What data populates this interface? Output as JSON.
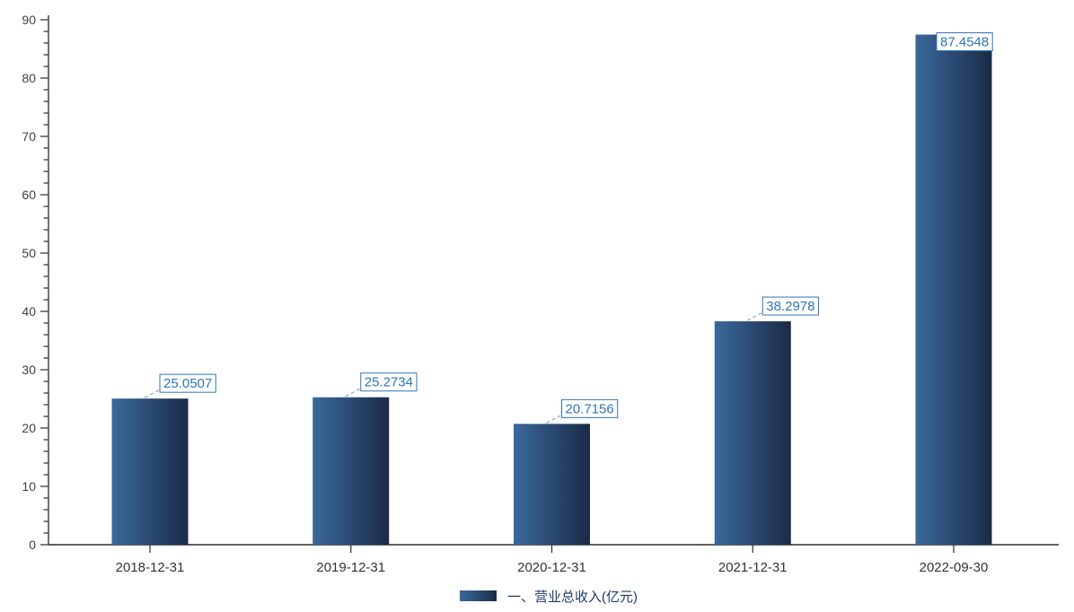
{
  "chart_data": {
    "type": "bar",
    "categories": [
      "2018-12-31",
      "2019-12-31",
      "2020-12-31",
      "2021-12-31",
      "2022-09-30"
    ],
    "values": [
      25.0507,
      25.2734,
      20.7156,
      38.2978,
      87.4548
    ],
    "value_labels": [
      "25.0507",
      "25.2734",
      "20.7156",
      "38.2978",
      "87.4548"
    ],
    "title": "",
    "xlabel": "",
    "ylabel": "",
    "ylim": [
      0,
      90
    ],
    "ytick_step": 10,
    "ytick_minor_step": 2,
    "yticks": [
      0,
      10,
      20,
      30,
      40,
      50,
      60,
      70,
      80,
      90
    ],
    "grid": false,
    "legend": {
      "position": "bottom-center",
      "entries": [
        {
          "label": "一、营业总收入(亿元)",
          "swatch": "blue-gradient"
        }
      ]
    },
    "colors": {
      "bar_gradient_start": "#3a699c",
      "bar_gradient_end": "#1b2b47",
      "value_label_text": "#2e75b6",
      "value_label_border": "#2e75b6",
      "value_label_bg": "#ffffff",
      "connector_line": "#7191bc",
      "axis_line": "#2b2b2b",
      "tick_label_text": "#3f3f3f",
      "legend_text": "#1f3864",
      "background": "#ffffff"
    }
  }
}
